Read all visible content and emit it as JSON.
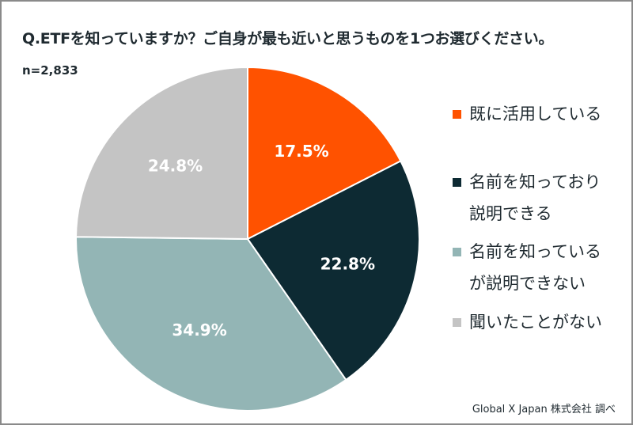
{
  "chart_data": {
    "type": "pie",
    "title": "Q.ETFを知っていますか？ご自身が最も近いと思うものを1つお選びください。",
    "sample_size": "n=2,833",
    "slices": [
      {
        "label": "既に活用している",
        "value": 17.5,
        "display": "17.5%",
        "color": "#FF5200"
      },
      {
        "label": "名前を知っており\n説明できる",
        "value": 22.8,
        "display": "22.8%",
        "color": "#0D2A33"
      },
      {
        "label": "名前を知っている\nが説明できない",
        "value": 34.9,
        "display": "34.9%",
        "color": "#93B5B5"
      },
      {
        "label": "聞いたことがない",
        "value": 24.8,
        "display": "24.8%",
        "color": "#C4C4C4"
      }
    ],
    "legend_position": "right",
    "source": "Global X Japan 株式会社 調べ"
  }
}
